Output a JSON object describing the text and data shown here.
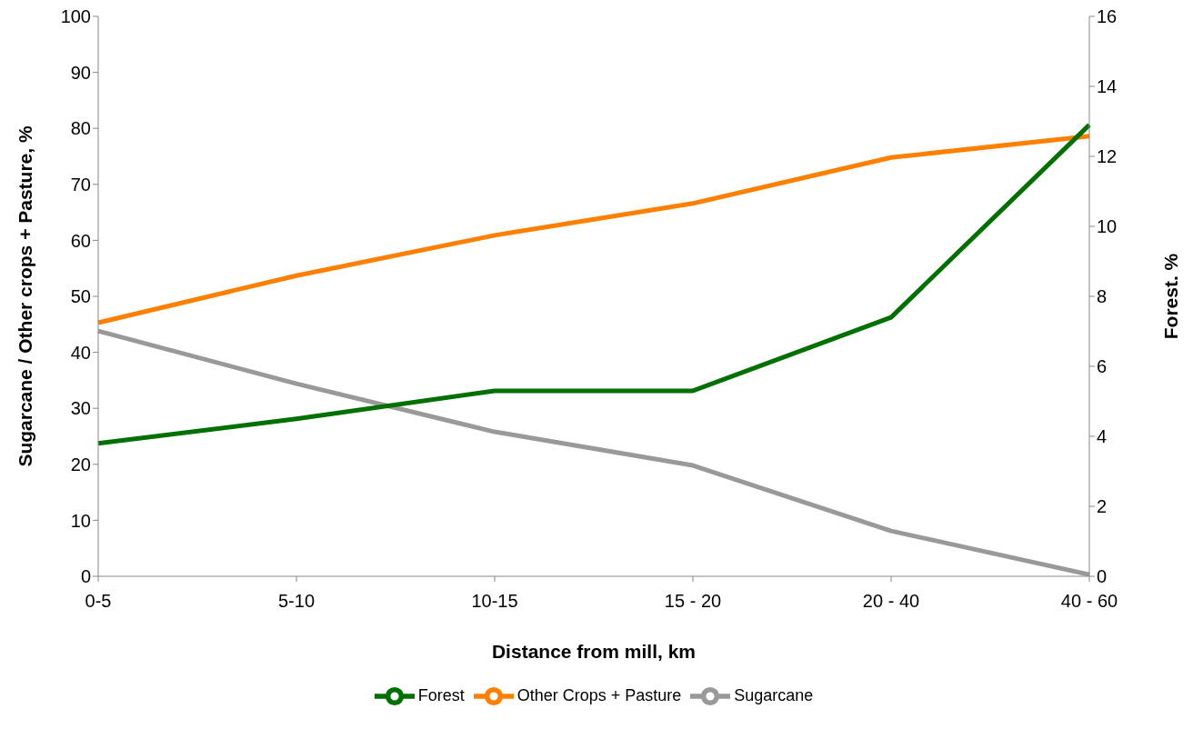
{
  "chart_data": {
    "type": "line",
    "xlabel": "Distance from mill, km",
    "ylabel": "Sugarcane / Other crops + Pasture, %",
    "y2label": "Forest. %",
    "categories": [
      "0-5",
      "5-10",
      "10-15",
      "15 - 20",
      "20 - 40",
      "40 - 60"
    ],
    "series": [
      {
        "name": "Sugarcane",
        "color": "#999999",
        "values": [
          43.8,
          34.4,
          25.8,
          19.8,
          8.1,
          0.3
        ]
      },
      {
        "name": "Other Crops + Pasture",
        "color": "#ff8000",
        "values": [
          45.3,
          53.7,
          60.9,
          66.6,
          74.8,
          78.6
        ]
      },
      {
        "name": "Forest",
        "color": "#007000",
        "axis": "y2",
        "values": [
          3.8,
          4.5,
          5.3,
          5.3,
          7.4,
          12.9
        ]
      }
    ],
    "ylim": [
      0,
      100
    ],
    "yticks": [
      0,
      10,
      20,
      30,
      40,
      50,
      60,
      70,
      80,
      90,
      100
    ],
    "y2lim": [
      0,
      16
    ],
    "y2ticks": [
      0,
      2,
      4,
      6,
      8,
      10,
      12,
      14,
      16
    ],
    "grid": false,
    "legend": "bottom",
    "marker": "none",
    "line_style": "solid"
  }
}
